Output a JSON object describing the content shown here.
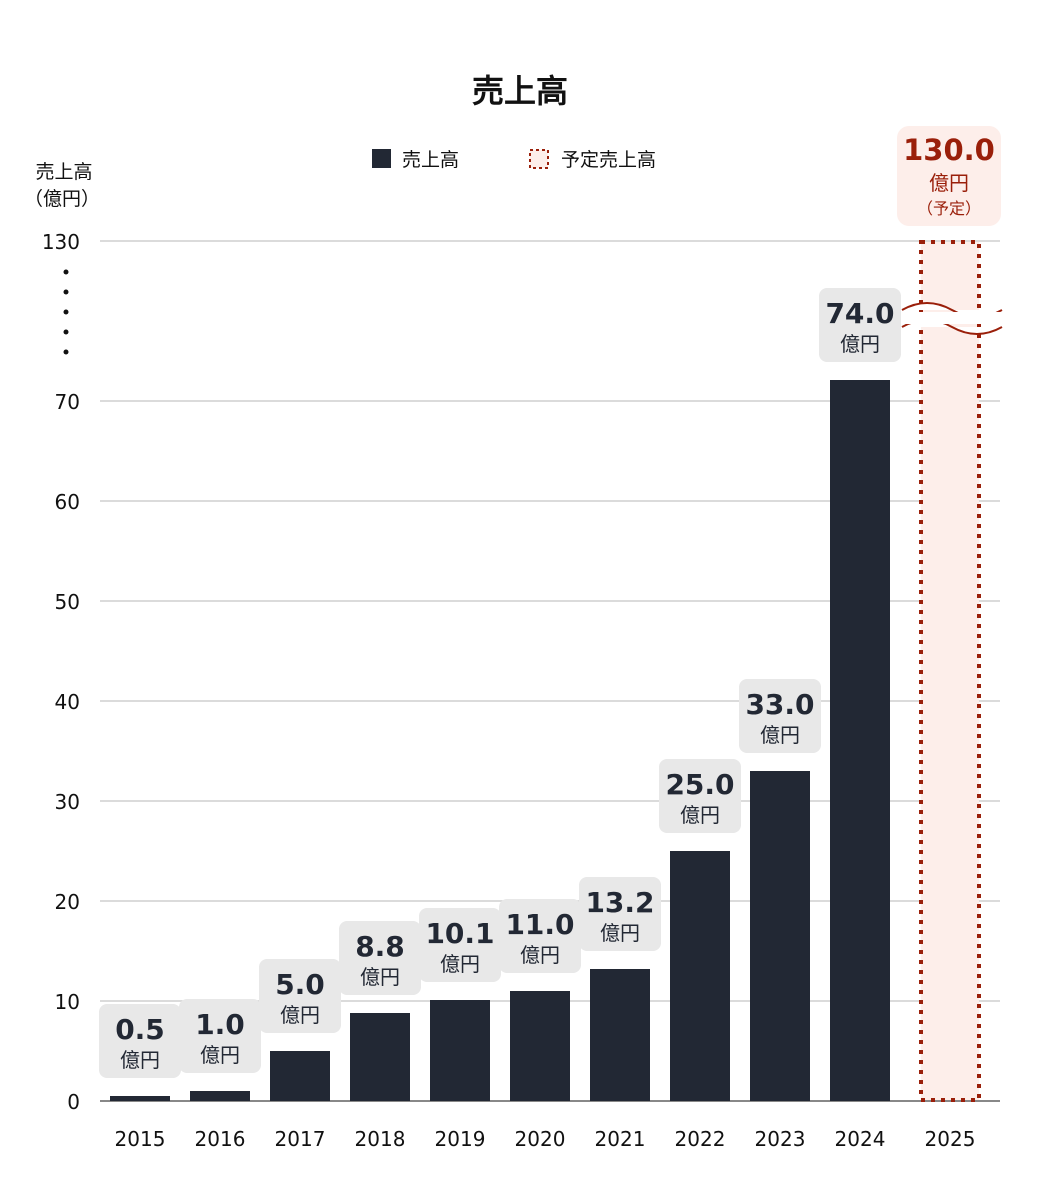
{
  "chart_data": {
    "type": "bar",
    "title": "売上高",
    "ylabel": [
      "売上高",
      "（億円）"
    ],
    "xlabel": "",
    "categories": [
      "2015",
      "2016",
      "2017",
      "2018",
      "2019",
      "2020",
      "2021",
      "2022",
      "2023",
      "2024",
      "2025"
    ],
    "series": [
      {
        "name": "売上高",
        "values": [
          0.5,
          1.0,
          5.0,
          8.8,
          10.1,
          11.0,
          13.2,
          25.0,
          33.0,
          74.0,
          null
        ],
        "color": "#222834"
      },
      {
        "name": "予定売上高",
        "values": [
          null,
          null,
          null,
          null,
          null,
          null,
          null,
          null,
          null,
          null,
          130.0
        ],
        "color": "#9a1f0a",
        "fill": "#fdeeea",
        "style": "dotted-outline"
      }
    ],
    "data_labels": [
      "0.5",
      "1.0",
      "5.0",
      "8.8",
      "10.1",
      "11.0",
      "13.2",
      "25.0",
      "33.0",
      "74.0",
      "130.0"
    ],
    "unit_label": "億円",
    "forecast_note": "（予定）",
    "yticks": [
      "0",
      "10",
      "20",
      "30",
      "40",
      "50",
      "60",
      "70",
      "130"
    ],
    "ylim": [
      0,
      130
    ],
    "axis_break": "between 70 and 130",
    "grid": true,
    "legend": "top-center"
  }
}
